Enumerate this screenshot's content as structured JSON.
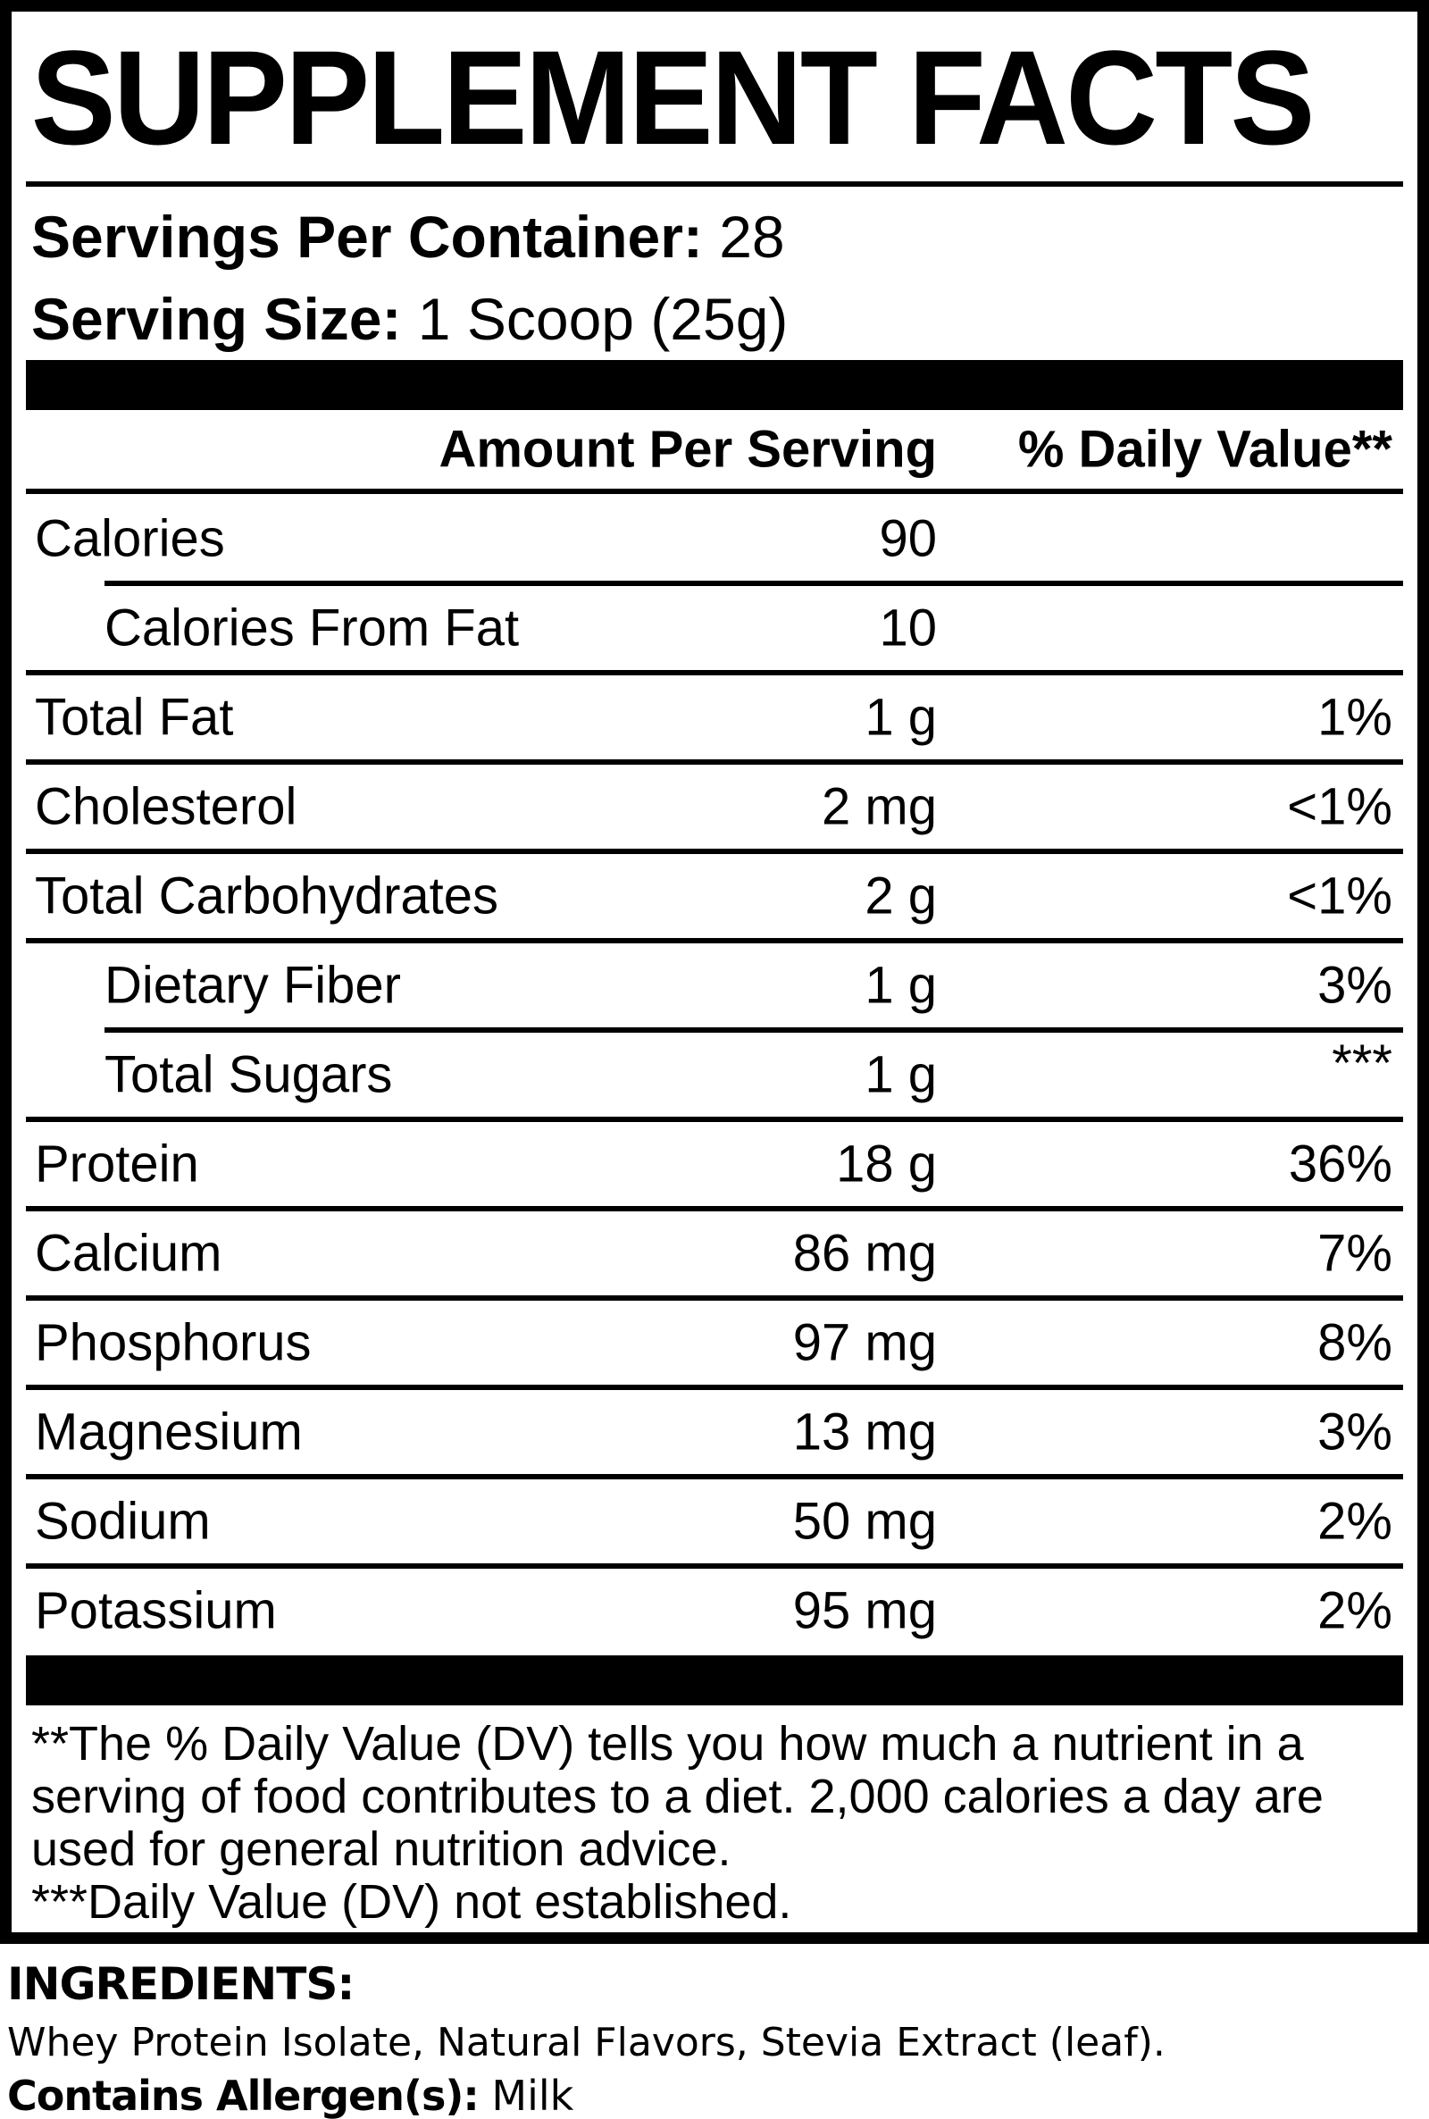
{
  "title": "SUPPLEMENT FACTS",
  "serving_info": {
    "servings_per_container_label": "Servings Per Container:",
    "servings_per_container_value": " 28",
    "serving_size_label": "Serving Size:",
    "serving_size_value": " 1 Scoop (25g)"
  },
  "table": {
    "header": {
      "amount": "Amount Per Serving",
      "daily_value": "% Daily Value**"
    },
    "rows": [
      {
        "label": "Calories",
        "amount": "90",
        "dv": "",
        "indent": false,
        "rule": "none",
        "dv_raised": false
      },
      {
        "label": "Calories From Fat",
        "amount": "10",
        "dv": "",
        "indent": true,
        "rule": "indent",
        "dv_raised": false
      },
      {
        "label": "Total Fat",
        "amount": "1 g",
        "dv": "1%",
        "indent": false,
        "rule": "full",
        "dv_raised": false
      },
      {
        "label": "Cholesterol",
        "amount": "2 mg",
        "dv": "<1%",
        "indent": false,
        "rule": "full",
        "dv_raised": false
      },
      {
        "label": "Total Carbohydrates",
        "amount": "2 g",
        "dv": "<1%",
        "indent": false,
        "rule": "full",
        "dv_raised": false
      },
      {
        "label": "Dietary Fiber",
        "amount": "1 g",
        "dv": "3%",
        "indent": true,
        "rule": "full",
        "dv_raised": false
      },
      {
        "label": "Total Sugars",
        "amount": "1 g",
        "dv": "***",
        "indent": true,
        "rule": "indent",
        "dv_raised": true
      },
      {
        "label": "Protein",
        "amount": "18 g",
        "dv": "36%",
        "indent": false,
        "rule": "full",
        "dv_raised": false
      },
      {
        "label": "Calcium",
        "amount": "86 mg",
        "dv": "7%",
        "indent": false,
        "rule": "full",
        "dv_raised": false
      },
      {
        "label": "Phosphorus",
        "amount": "97 mg",
        "dv": "8%",
        "indent": false,
        "rule": "full",
        "dv_raised": false
      },
      {
        "label": "Magnesium",
        "amount": "13 mg",
        "dv": "3%",
        "indent": false,
        "rule": "full",
        "dv_raised": false
      },
      {
        "label": "Sodium",
        "amount": "50 mg",
        "dv": "2%",
        "indent": false,
        "rule": "full",
        "dv_raised": false
      },
      {
        "label": "Potassium",
        "amount": "95 mg",
        "dv": "2%",
        "indent": false,
        "rule": "full",
        "dv_raised": false
      }
    ]
  },
  "footnotes": [
    "**The % Daily Value (DV) tells you how much a nutrient in a serving of food contributes to a diet. 2,000 calories a day are used for general nutrition advice.",
    "***Daily Value (DV) not established."
  ],
  "ingredients": {
    "heading": "INGREDIENTS:",
    "list": "Whey Protein Isolate, Natural Flavors, Stevia Extract (leaf).",
    "allergen_label": "Contains Allergen(s):",
    "allergen_value": " Milk"
  },
  "colors": {
    "text": "#000000",
    "background": "#ffffff"
  }
}
